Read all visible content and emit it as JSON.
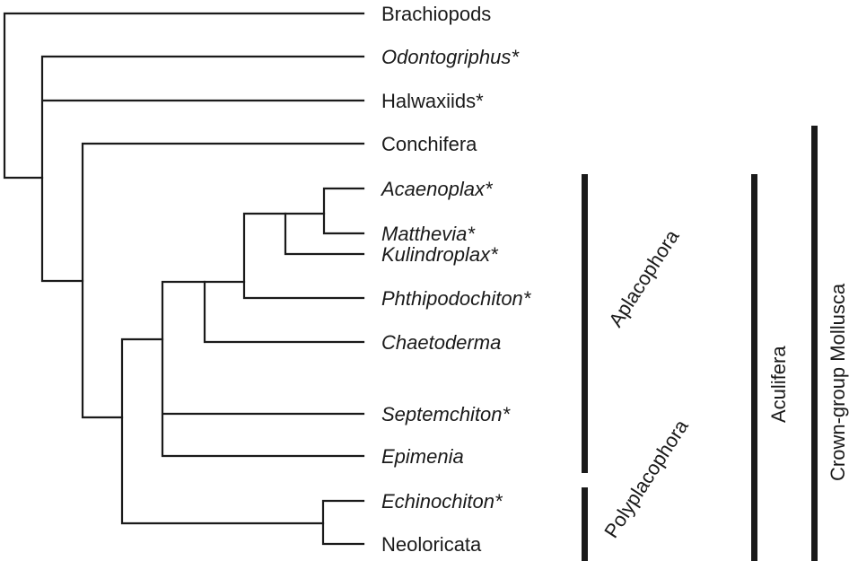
{
  "taxa": [
    {
      "name": "Brachiopods",
      "italic": false
    },
    {
      "name": "Odontogriphus*",
      "italic": true
    },
    {
      "name": "Halwaxiids*",
      "italic": false
    },
    {
      "name": "Conchifera",
      "italic": false
    },
    {
      "name": "Acaenoplax*",
      "italic": true
    },
    {
      "name": "Matthevia*",
      "italic": true
    },
    {
      "name": "Kulindroplax*",
      "italic": true
    },
    {
      "name": "Phthipodochiton*",
      "italic": true
    },
    {
      "name": "Chaetoderma",
      "italic": true
    },
    {
      "name": "Septemchiton*",
      "italic": true
    },
    {
      "name": "Epimenia",
      "italic": true
    },
    {
      "name": "Echinochiton*",
      "italic": true
    },
    {
      "name": "Neoloricata",
      "italic": false
    }
  ],
  "groups": {
    "aplacophora": "Aplacophora",
    "polyplacophora": "Polyplacophora",
    "aculifera": "Aculifera",
    "crown_group": "Crown-group Mollusca"
  },
  "colors": {
    "ink": "#1a1a1a",
    "background": "#ffffff"
  }
}
